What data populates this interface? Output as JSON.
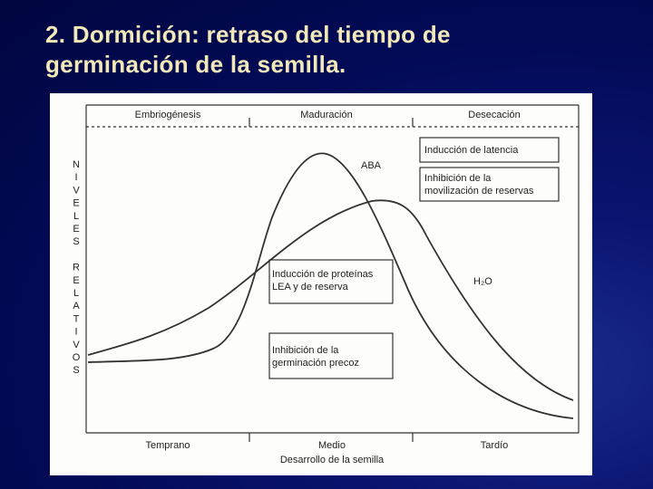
{
  "title_lines": [
    "2. Dormición: retraso del tiempo de",
    "germinación de la semilla."
  ],
  "diagram": {
    "phases": [
      "Embriogénesis",
      "Maduración",
      "Desecación"
    ],
    "stages": [
      "Temprano",
      "Medio",
      "Tardío"
    ],
    "x_axis_label": "Desarrollo de la semilla",
    "y_axis_label": "NIVELES RELATIVOS",
    "curve_labels": [
      "ABA",
      "H₂O"
    ],
    "boxes": [
      {
        "lines": [
          "Inducción de latencia"
        ]
      },
      {
        "lines": [
          "Inhibición de la",
          "movilización de reservas"
        ]
      },
      {
        "lines": [
          "Inducción de proteínas",
          "LEA y de reserva"
        ]
      },
      {
        "lines": [
          "Inhibición de la",
          "germinación precoz"
        ]
      }
    ]
  }
}
